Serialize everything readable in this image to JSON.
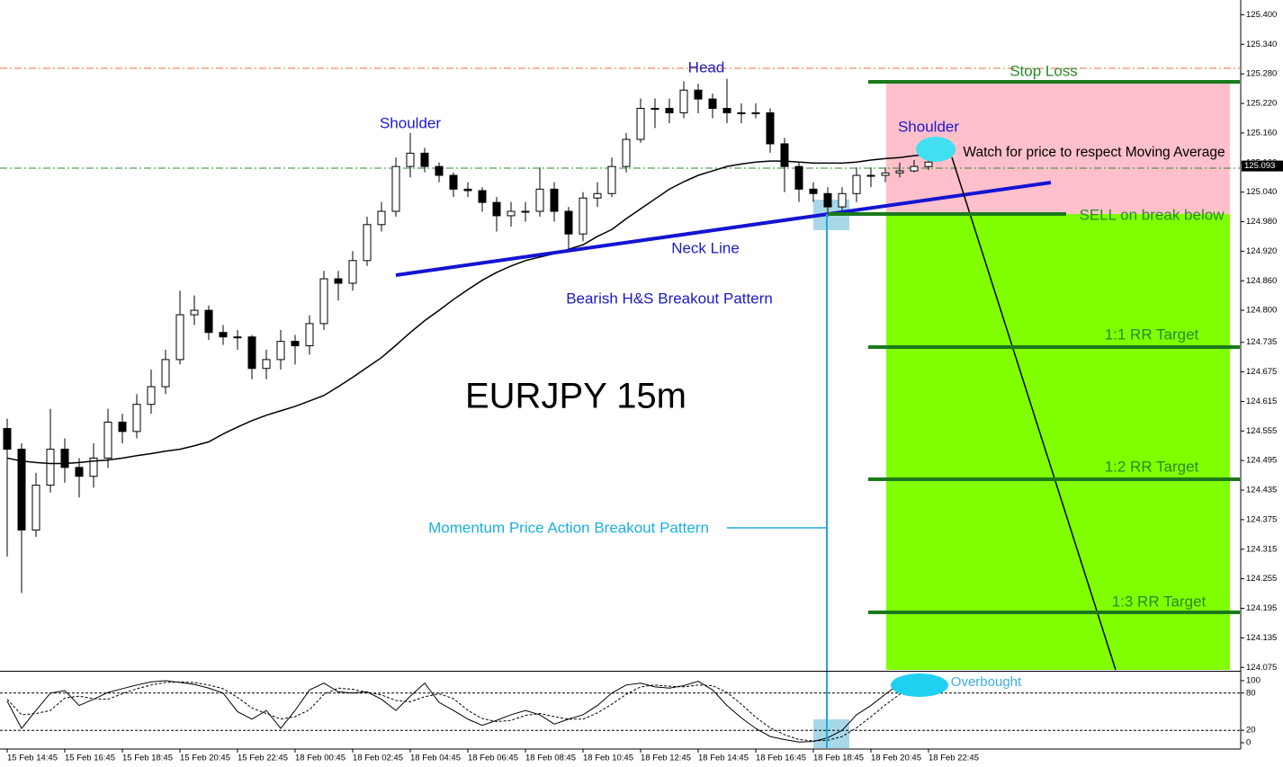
{
  "chart_data": [
    {
      "type": "candlestick",
      "title": "EURJPY 15m",
      "categories": [
        "15 Feb 14:45",
        null,
        null,
        null,
        "15 Feb 16:45",
        null,
        null,
        null,
        "15 Feb 18:45",
        null,
        null,
        null,
        "15 Feb 20:45",
        null,
        null,
        null,
        "15 Feb 22:45",
        null,
        null,
        null,
        "18 Feb 00:45",
        null,
        null,
        null,
        "18 Feb 02:45",
        null,
        null,
        null,
        "18 Feb 04:45",
        null,
        null,
        null,
        "18 Feb 06:45",
        null,
        null,
        null,
        "18 Feb 08:45",
        null,
        null,
        null,
        "18 Feb 10:45",
        null,
        null,
        null,
        "18 Feb 12:45",
        null,
        null,
        null,
        "18 Feb 14:45",
        null,
        null,
        null,
        "18 Feb 16:45",
        null,
        null,
        null,
        "18 Feb 18:45",
        null,
        null,
        null,
        "18 Feb 20:45",
        null,
        null,
        null,
        "18 Feb 22:45"
      ],
      "open": [
        124.56,
        124.518,
        124.354,
        124.445,
        124.518,
        124.481,
        124.463,
        124.5,
        124.573,
        124.554,
        124.609,
        124.645,
        124.7,
        124.791,
        124.8,
        124.755,
        124.746,
        124.746,
        124.682,
        124.7,
        124.737,
        124.728,
        124.773,
        124.864,
        124.855,
        124.901,
        124.974,
        125.001,
        125.092,
        125.119,
        125.092,
        125.074,
        125.046,
        125.043,
        125.019,
        124.992,
        125.001,
        125.001,
        125.046,
        125.001,
        124.955,
        125.028,
        125.037,
        125.092,
        125.147,
        125.21,
        125.21,
        125.201,
        125.247,
        125.229,
        125.21,
        125.201,
        125.201,
        125.201,
        125.138,
        125.092,
        125.046,
        125.037,
        125.01,
        125.037,
        125.074,
        125.074,
        125.079,
        125.083,
        125.092
      ],
      "high": [
        124.58,
        124.53,
        124.47,
        124.6,
        124.54,
        124.5,
        124.53,
        124.6,
        124.59,
        124.63,
        124.68,
        124.72,
        124.84,
        124.83,
        124.81,
        124.77,
        124.76,
        124.75,
        124.72,
        124.76,
        124.75,
        124.79,
        124.88,
        124.88,
        124.92,
        124.99,
        125.02,
        125.11,
        125.16,
        125.13,
        125.1,
        125.08,
        125.06,
        125.05,
        125.03,
        125.02,
        125.02,
        125.09,
        125.06,
        125.01,
        125.04,
        125.06,
        125.11,
        125.16,
        125.23,
        125.23,
        125.23,
        125.265,
        125.26,
        125.24,
        125.27,
        125.22,
        125.22,
        125.21,
        125.15,
        125.1,
        125.06,
        125.05,
        125.05,
        125.09,
        125.09,
        125.09,
        125.1,
        125.105,
        125.115
      ],
      "low": [
        124.3,
        124.226,
        124.34,
        124.43,
        124.45,
        124.42,
        124.44,
        124.48,
        124.53,
        124.54,
        124.59,
        124.63,
        124.69,
        124.77,
        124.74,
        124.73,
        124.72,
        124.66,
        124.66,
        124.68,
        124.69,
        124.71,
        124.76,
        124.82,
        124.84,
        124.89,
        124.96,
        124.99,
        125.07,
        125.08,
        125.06,
        125.03,
        125.03,
        125.0,
        124.96,
        124.97,
        124.98,
        124.99,
        124.98,
        124.92,
        124.94,
        125.01,
        125.03,
        125.08,
        125.14,
        125.17,
        125.18,
        125.19,
        125.2,
        125.19,
        125.18,
        125.18,
        125.19,
        125.12,
        125.04,
        125.02,
        125.02,
        124.99,
        125.0,
        125.02,
        125.05,
        125.06,
        125.07,
        125.08,
        125.085
      ],
      "close": [
        124.518,
        124.354,
        124.445,
        124.518,
        124.481,
        124.463,
        124.5,
        124.573,
        124.554,
        124.609,
        124.645,
        124.7,
        124.791,
        124.8,
        124.755,
        124.746,
        124.746,
        124.682,
        124.7,
        124.737,
        124.728,
        124.773,
        124.864,
        124.855,
        124.901,
        124.974,
        125.001,
        125.092,
        125.119,
        125.092,
        125.074,
        125.046,
        125.043,
        125.019,
        124.992,
        125.001,
        125.001,
        125.046,
        125.001,
        124.955,
        125.028,
        125.037,
        125.092,
        125.147,
        125.21,
        125.21,
        125.201,
        125.247,
        125.229,
        125.21,
        125.201,
        125.201,
        125.201,
        125.138,
        125.092,
        125.046,
        125.037,
        125.01,
        125.037,
        125.074,
        125.074,
        125.079,
        125.083,
        125.092,
        125.101
      ],
      "moving_average": {
        "color": "#000000",
        "values": [
          124.5,
          124.494,
          124.491,
          124.489,
          124.489,
          124.491,
          124.494,
          124.496,
          124.5,
          124.505,
          124.509,
          124.514,
          124.518,
          124.525,
          124.533,
          124.549,
          124.563,
          124.576,
          124.587,
          124.596,
          124.605,
          124.616,
          124.627,
          124.645,
          124.664,
          124.684,
          124.704,
          124.729,
          124.755,
          124.779,
          124.8,
          124.822,
          124.842,
          124.861,
          124.877,
          124.89,
          124.901,
          124.908,
          124.915,
          124.924,
          124.933,
          124.95,
          124.964,
          124.986,
          125.006,
          125.026,
          125.046,
          125.061,
          125.074,
          125.083,
          125.092,
          125.097,
          125.101,
          125.103,
          125.103,
          125.101,
          125.099,
          125.099,
          125.099,
          125.101,
          125.105,
          125.108,
          125.11,
          125.114,
          125.116
        ]
      },
      "last_price": 125.093,
      "ylim": [
        124.07,
        125.43
      ],
      "yticks": [
        {
          "value": 125.4,
          "label": "125.400"
        },
        {
          "value": 125.34,
          "label": "125.340"
        },
        {
          "value": 125.28,
          "label": "125.280"
        },
        {
          "value": 125.22,
          "label": "125.220"
        },
        {
          "value": 125.16,
          "label": "125.160"
        },
        {
          "value": 125.1,
          "label": "125.100"
        },
        {
          "value": 125.04,
          "label": "125.040"
        },
        {
          "value": 124.98,
          "label": "124.980"
        },
        {
          "value": 124.92,
          "label": "124.920"
        },
        {
          "value": 124.86,
          "label": "124.860"
        },
        {
          "value": 124.8,
          "label": "124.800"
        },
        124.735,
        124.675,
        124.615,
        124.555,
        124.495,
        124.435,
        124.375,
        124.315,
        124.255,
        124.195,
        124.135,
        124.075
      ],
      "annotations": [
        "Head",
        "Shoulder",
        "Shoulder",
        "Neck Line",
        "Bearish H&S Breakout Pattern",
        "Stop Loss",
        "SELL on break below",
        "Watch for price to respect Moving Average",
        "1:1 RR Target",
        "1:2 RR Target",
        "1:3 RR Target",
        "Momentum Price Action Breakout Pattern",
        "Overbought"
      ]
    },
    {
      "type": "line",
      "series": [
        {
          "color": "#000000",
          "values": [
            67,
            23,
            52,
            80,
            84,
            60,
            70,
            81,
            87,
            93,
            98,
            100,
            97,
            94,
            88,
            80,
            50,
            38,
            52,
            23,
            52,
            85,
            96,
            82,
            80,
            82,
            70,
            52,
            75,
            96,
            65,
            52,
            38,
            28,
            36,
            45,
            52,
            45,
            30,
            38,
            45,
            60,
            80,
            93,
            96,
            90,
            88,
            92,
            99,
            85,
            60,
            40,
            23,
            10,
            5,
            1,
            2,
            8,
            20,
            45,
            60,
            78,
            95,
            100,
            98
          ]
        },
        {
          "color": "#000000",
          "dashed": true,
          "values": [
            70,
            45,
            47,
            52,
            72,
            75,
            71,
            70,
            79,
            87,
            93,
            97,
            98,
            97,
            93,
            87,
            73,
            56,
            47,
            38,
            42,
            53,
            78,
            88,
            86,
            81,
            77,
            68,
            66,
            74,
            79,
            71,
            52,
            39,
            34,
            36,
            44,
            47,
            42,
            38,
            38,
            48,
            62,
            78,
            90,
            93,
            91,
            90,
            93,
            92,
            81,
            62,
            41,
            24,
            13,
            5,
            3,
            4,
            10,
            24,
            42,
            61,
            78,
            91,
            98
          ]
        }
      ],
      "ylim": [
        -8.7,
        113
      ],
      "yticks": [
        0,
        20,
        80,
        100
      ]
    }
  ]
}
